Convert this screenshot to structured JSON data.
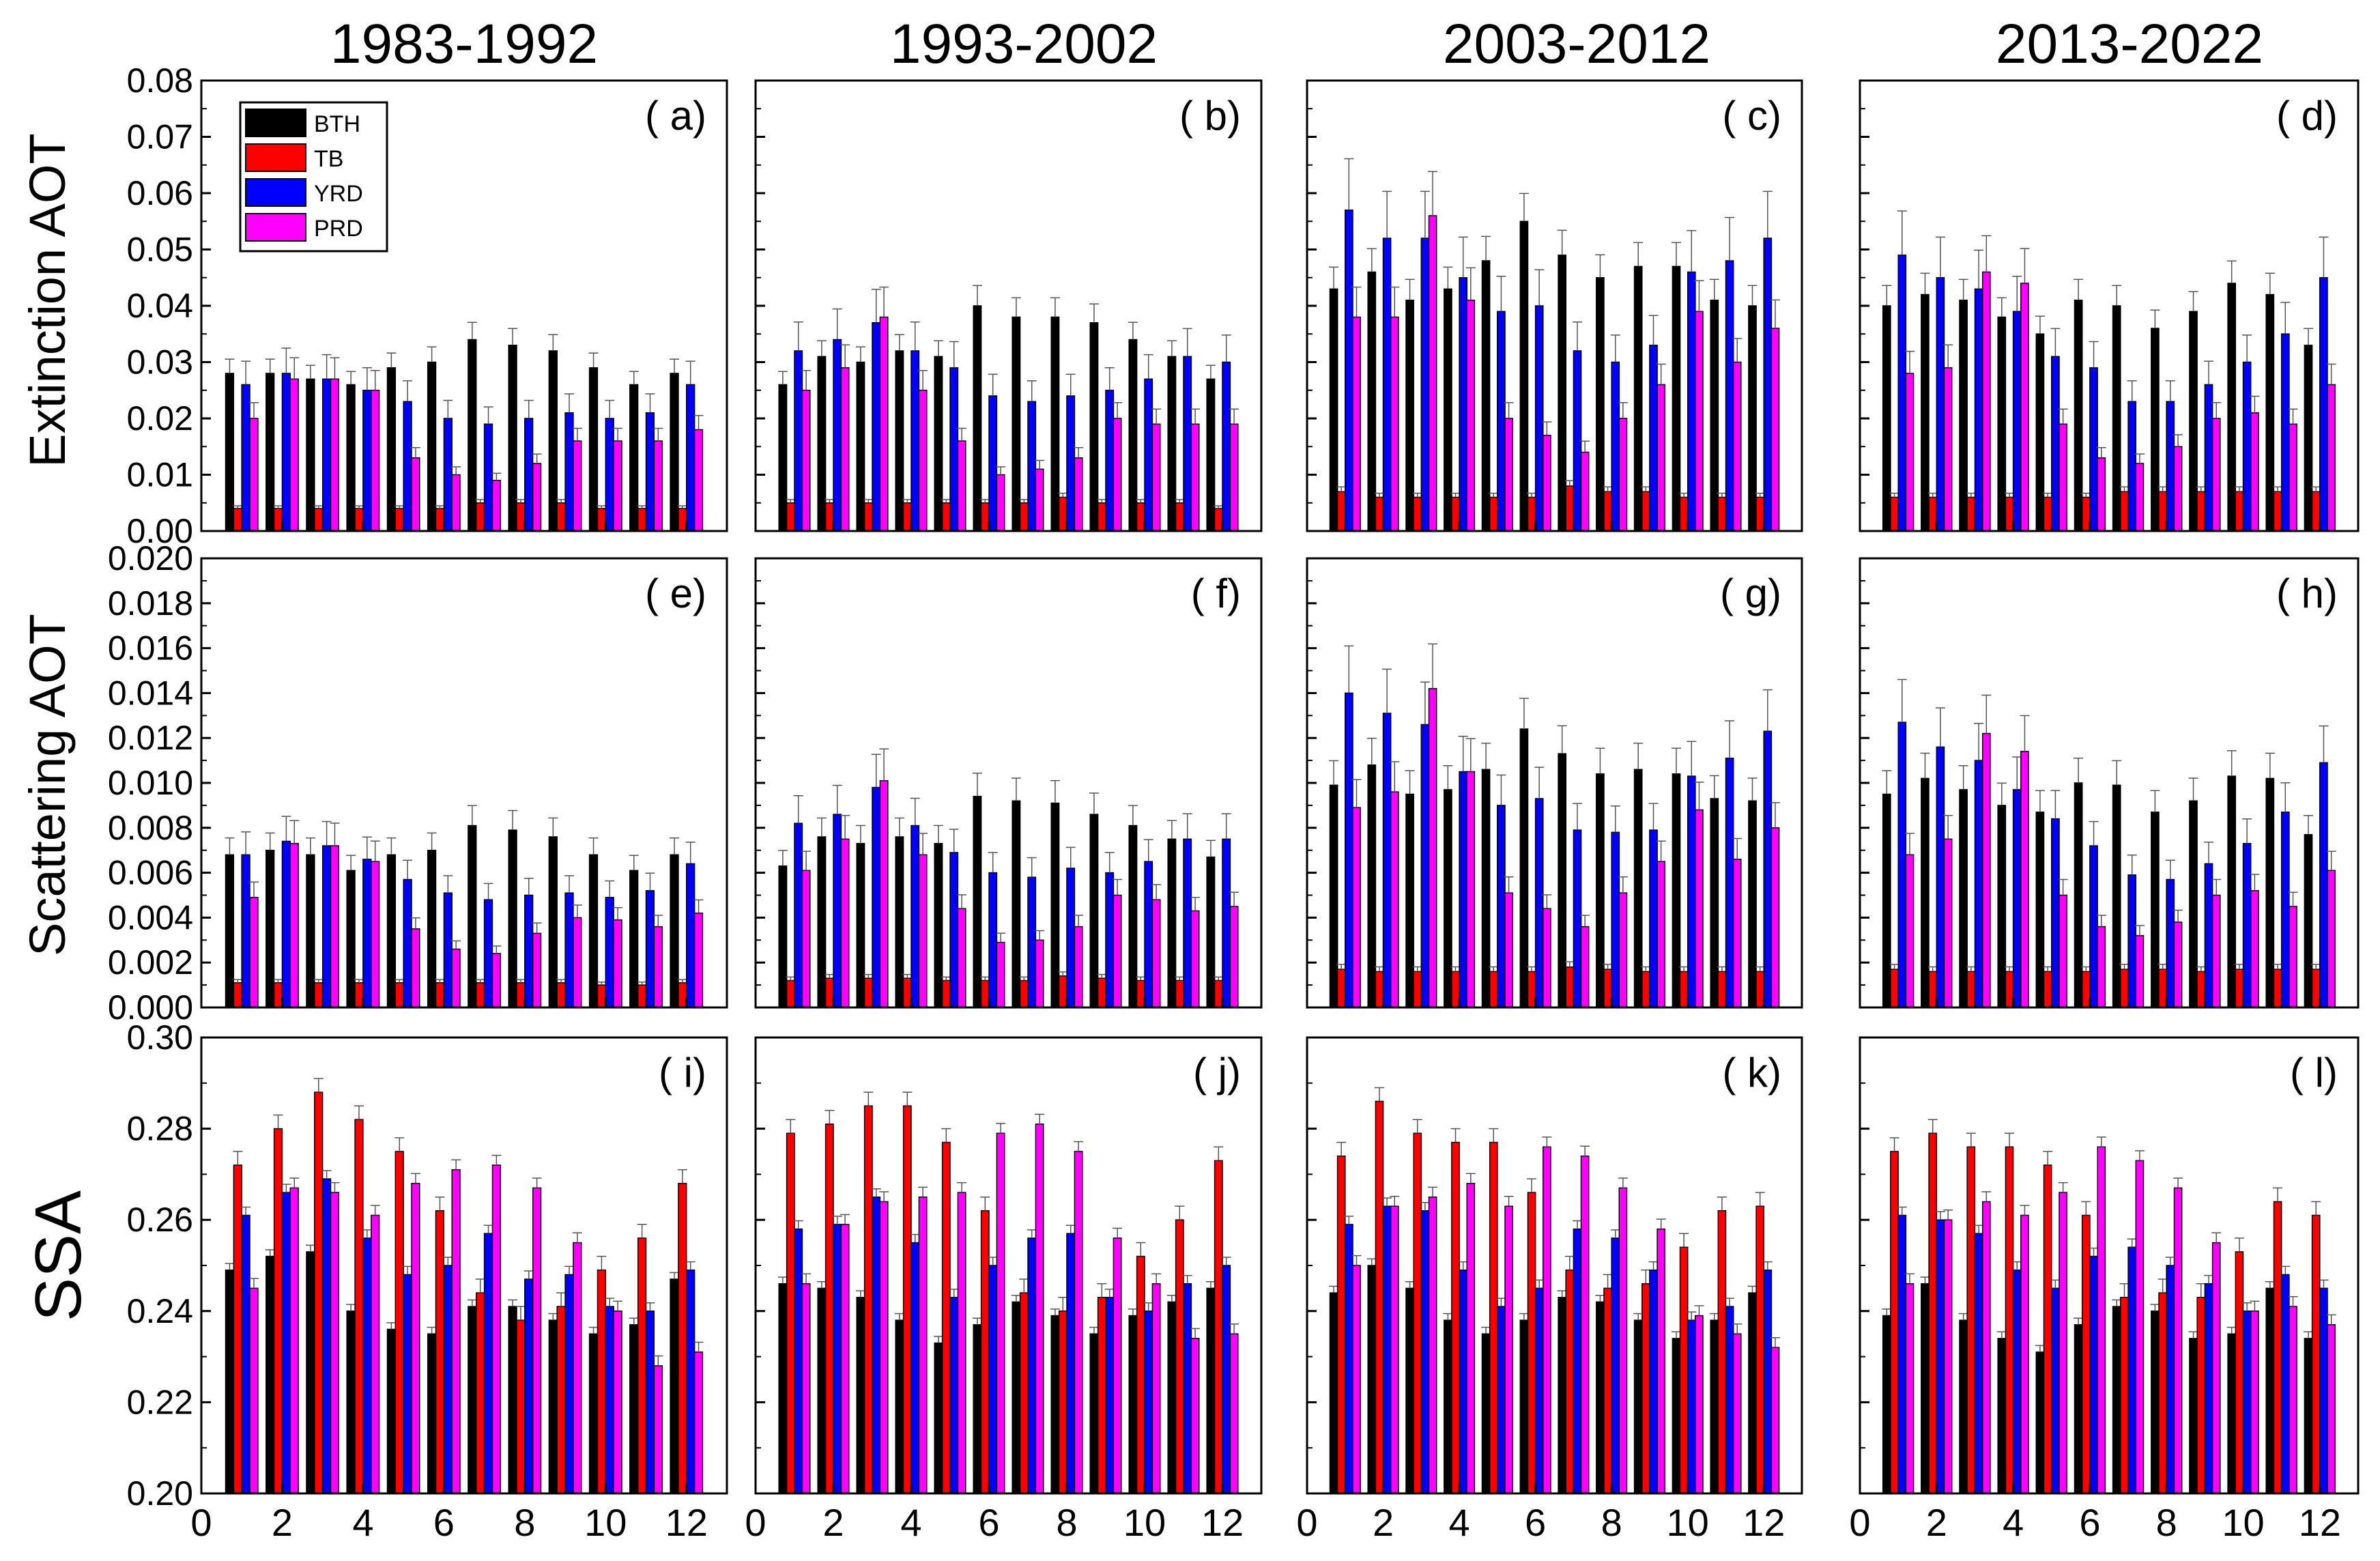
{
  "legend": [
    {
      "name": "BTH",
      "color": "#000000"
    },
    {
      "name": "TB",
      "color": "#ff0000"
    },
    {
      "name": "YRD",
      "color": "#0000ff"
    },
    {
      "name": "PRD",
      "color": "#ff00ff"
    }
  ],
  "periods": [
    "1983-1992",
    "1993-2002",
    "2003-2012",
    "2013-2022"
  ],
  "rows": [
    {
      "label": "Extinction AOT",
      "ylim": [
        0,
        0.08
      ],
      "ticks": [
        "0.00",
        "0.01",
        "0.02",
        "0.03",
        "0.04",
        "0.05",
        "0.06",
        "0.07",
        "0.08"
      ]
    },
    {
      "label": "Scattering AOT",
      "ylim": [
        0,
        0.02
      ],
      "ticks": [
        "0.000",
        "0.002",
        "0.004",
        "0.006",
        "0.008",
        "0.010",
        "0.012",
        "0.014",
        "0.016",
        "0.018",
        "0.020"
      ]
    },
    {
      "label": "SSA",
      "ylim": [
        0.2,
        0.3
      ],
      "ticks": [
        "0.20",
        "0.22",
        "0.24",
        "0.26",
        "0.28",
        "0.30"
      ]
    }
  ],
  "x_ticks": [
    "0",
    "2",
    "4",
    "6",
    "8",
    "10",
    "12"
  ],
  "chart_data": {
    "type": "bar",
    "categories": [
      1,
      2,
      3,
      4,
      5,
      6,
      7,
      8,
      9,
      10,
      11,
      12
    ],
    "series_names": [
      "BTH",
      "TB",
      "YRD",
      "PRD"
    ],
    "xlim": [
      0,
      13
    ],
    "panels": [
      {
        "label": "( a)",
        "row": 0,
        "col": 0,
        "series": [
          [
            0.028,
            0.028,
            0.027,
            0.026,
            0.029,
            0.03,
            0.034,
            0.033,
            0.032,
            0.029,
            0.026,
            0.028
          ],
          [
            0.004,
            0.004,
            0.004,
            0.004,
            0.004,
            0.004,
            0.005,
            0.005,
            0.005,
            0.004,
            0.004,
            0.004
          ],
          [
            0.026,
            0.028,
            0.027,
            0.025,
            0.023,
            0.02,
            0.019,
            0.02,
            0.021,
            0.02,
            0.021,
            0.026
          ],
          [
            0.02,
            0.027,
            0.027,
            0.025,
            0.013,
            0.01,
            0.009,
            0.012,
            0.016,
            0.016,
            0.016,
            0.018
          ]
        ]
      },
      {
        "label": "( b)",
        "row": 0,
        "col": 1,
        "series": [
          [
            0.026,
            0.031,
            0.03,
            0.032,
            0.031,
            0.04,
            0.038,
            0.038,
            0.037,
            0.034,
            0.031,
            0.027
          ],
          [
            0.005,
            0.005,
            0.005,
            0.005,
            0.005,
            0.005,
            0.005,
            0.006,
            0.005,
            0.005,
            0.005,
            0.004
          ],
          [
            0.032,
            0.034,
            0.037,
            0.032,
            0.029,
            0.024,
            0.023,
            0.024,
            0.025,
            0.027,
            0.031,
            0.03
          ],
          [
            0.025,
            0.029,
            0.038,
            0.025,
            0.016,
            0.01,
            0.011,
            0.013,
            0.02,
            0.019,
            0.019,
            0.019
          ]
        ]
      },
      {
        "label": "( c)",
        "row": 0,
        "col": 2,
        "series": [
          [
            0.043,
            0.046,
            0.041,
            0.043,
            0.048,
            0.055,
            0.049,
            0.045,
            0.047,
            0.047,
            0.041,
            0.04
          ],
          [
            0.007,
            0.006,
            0.006,
            0.006,
            0.006,
            0.006,
            0.008,
            0.007,
            0.007,
            0.006,
            0.006,
            0.006
          ],
          [
            0.057,
            0.052,
            0.052,
            0.045,
            0.039,
            0.04,
            0.032,
            0.03,
            0.033,
            0.046,
            0.048,
            0.052
          ],
          [
            0.038,
            0.038,
            0.056,
            0.041,
            0.02,
            0.017,
            0.014,
            0.02,
            0.026,
            0.039,
            0.03,
            0.036
          ]
        ]
      },
      {
        "label": "( d)",
        "row": 0,
        "col": 3,
        "series": [
          [
            0.04,
            0.042,
            0.041,
            0.038,
            0.035,
            0.041,
            0.04,
            0.036,
            0.039,
            0.044,
            0.042,
            0.033
          ],
          [
            0.006,
            0.006,
            0.006,
            0.006,
            0.006,
            0.006,
            0.007,
            0.007,
            0.007,
            0.007,
            0.007,
            0.007
          ],
          [
            0.049,
            0.045,
            0.043,
            0.039,
            0.031,
            0.029,
            0.023,
            0.023,
            0.026,
            0.03,
            0.035,
            0.045
          ],
          [
            0.028,
            0.029,
            0.046,
            0.044,
            0.019,
            0.013,
            0.012,
            0.015,
            0.02,
            0.021,
            0.019,
            0.026
          ]
        ]
      },
      {
        "label": "( e)",
        "row": 1,
        "col": 0,
        "series": [
          [
            0.0068,
            0.007,
            0.0068,
            0.0061,
            0.0068,
            0.007,
            0.0081,
            0.0079,
            0.0076,
            0.0068,
            0.0061,
            0.0068
          ],
          [
            0.0011,
            0.0011,
            0.0011,
            0.0011,
            0.0011,
            0.0011,
            0.0011,
            0.0011,
            0.0011,
            0.001,
            0.001,
            0.0011
          ],
          [
            0.0068,
            0.0074,
            0.0072,
            0.0066,
            0.0057,
            0.0051,
            0.0048,
            0.005,
            0.0051,
            0.0049,
            0.0052,
            0.0064
          ],
          [
            0.0049,
            0.0073,
            0.0072,
            0.0065,
            0.0035,
            0.0026,
            0.0024,
            0.0033,
            0.004,
            0.0039,
            0.0036,
            0.0042
          ]
        ]
      },
      {
        "label": "( f)",
        "row": 1,
        "col": 1,
        "series": [
          [
            0.0063,
            0.0076,
            0.0073,
            0.0076,
            0.0073,
            0.0094,
            0.0092,
            0.0091,
            0.0086,
            0.0081,
            0.0075,
            0.0067
          ],
          [
            0.0012,
            0.0013,
            0.0013,
            0.0013,
            0.0012,
            0.0012,
            0.0012,
            0.0014,
            0.0013,
            0.0012,
            0.0012,
            0.0012
          ],
          [
            0.0082,
            0.0086,
            0.0098,
            0.0081,
            0.0069,
            0.006,
            0.0058,
            0.0062,
            0.006,
            0.0065,
            0.0075,
            0.0075
          ],
          [
            0.0061,
            0.0075,
            0.0101,
            0.0068,
            0.0044,
            0.0029,
            0.003,
            0.0036,
            0.005,
            0.0048,
            0.0043,
            0.0045
          ]
        ]
      },
      {
        "label": "( g)",
        "row": 1,
        "col": 2,
        "series": [
          [
            0.0099,
            0.0108,
            0.0095,
            0.0097,
            0.0106,
            0.0124,
            0.0113,
            0.0104,
            0.0106,
            0.0104,
            0.0093,
            0.0092
          ],
          [
            0.0017,
            0.0016,
            0.0016,
            0.0016,
            0.0016,
            0.0016,
            0.0018,
            0.0017,
            0.0016,
            0.0016,
            0.0016,
            0.0016
          ],
          [
            0.014,
            0.0131,
            0.0126,
            0.0105,
            0.009,
            0.0093,
            0.0079,
            0.0078,
            0.0079,
            0.0103,
            0.0111,
            0.0123
          ],
          [
            0.0089,
            0.0096,
            0.0142,
            0.0105,
            0.0051,
            0.0044,
            0.0036,
            0.0051,
            0.0065,
            0.0088,
            0.0066,
            0.008
          ]
        ]
      },
      {
        "label": "( h)",
        "row": 1,
        "col": 3,
        "series": [
          [
            0.0095,
            0.0102,
            0.0097,
            0.009,
            0.0087,
            0.01,
            0.0099,
            0.0087,
            0.0092,
            0.0103,
            0.0102,
            0.0077
          ],
          [
            0.0017,
            0.0016,
            0.0016,
            0.0016,
            0.0016,
            0.0016,
            0.0017,
            0.0017,
            0.0016,
            0.0017,
            0.0017,
            0.0017
          ],
          [
            0.0127,
            0.0116,
            0.011,
            0.0097,
            0.0084,
            0.0072,
            0.0059,
            0.0057,
            0.0064,
            0.0073,
            0.0087,
            0.0109
          ],
          [
            0.0068,
            0.0075,
            0.0122,
            0.0114,
            0.005,
            0.0036,
            0.0032,
            0.0038,
            0.005,
            0.0052,
            0.0045,
            0.0061
          ]
        ]
      },
      {
        "label": "( i)",
        "row": 2,
        "col": 0,
        "series": [
          [
            0.249,
            0.252,
            0.253,
            0.24,
            0.236,
            0.235,
            0.241,
            0.241,
            0.238,
            0.235,
            0.237,
            0.247
          ],
          [
            0.272,
            0.28,
            0.288,
            0.282,
            0.275,
            0.262,
            0.244,
            0.238,
            0.241,
            0.249,
            0.256,
            0.268
          ],
          [
            0.261,
            0.266,
            0.269,
            0.256,
            0.248,
            0.25,
            0.257,
            0.247,
            0.248,
            0.241,
            0.24,
            0.249
          ],
          [
            0.245,
            0.267,
            0.266,
            0.261,
            0.268,
            0.271,
            0.272,
            0.267,
            0.255,
            0.24,
            0.228,
            0.231
          ]
        ]
      },
      {
        "label": "( j)",
        "row": 2,
        "col": 1,
        "series": [
          [
            0.246,
            0.245,
            0.243,
            0.238,
            0.233,
            0.237,
            0.242,
            0.239,
            0.235,
            0.239,
            0.242,
            0.245
          ],
          [
            0.279,
            0.281,
            0.285,
            0.285,
            0.277,
            0.262,
            0.244,
            0.24,
            0.243,
            0.252,
            0.26,
            0.273
          ],
          [
            0.258,
            0.259,
            0.265,
            0.255,
            0.243,
            0.25,
            0.256,
            0.257,
            0.243,
            0.24,
            0.246,
            0.25
          ],
          [
            0.246,
            0.259,
            0.264,
            0.265,
            0.266,
            0.279,
            0.281,
            0.275,
            0.256,
            0.246,
            0.234,
            0.235
          ]
        ]
      },
      {
        "label": "( k)",
        "row": 2,
        "col": 2,
        "series": [
          [
            0.244,
            0.25,
            0.245,
            0.238,
            0.235,
            0.238,
            0.243,
            0.242,
            0.238,
            0.234,
            0.238,
            0.244
          ],
          [
            0.274,
            0.286,
            0.279,
            0.277,
            0.277,
            0.266,
            0.249,
            0.245,
            0.246,
            0.254,
            0.262,
            0.263
          ],
          [
            0.259,
            0.263,
            0.262,
            0.249,
            0.241,
            0.245,
            0.258,
            0.256,
            0.249,
            0.238,
            0.241,
            0.249
          ],
          [
            0.25,
            0.263,
            0.265,
            0.268,
            0.263,
            0.276,
            0.274,
            0.267,
            0.258,
            0.239,
            0.235,
            0.232
          ]
        ]
      },
      {
        "label": "( l)",
        "row": 2,
        "col": 3,
        "series": [
          [
            0.239,
            0.246,
            0.238,
            0.234,
            0.231,
            0.237,
            0.241,
            0.24,
            0.234,
            0.235,
            0.245,
            0.234
          ],
          [
            0.275,
            0.279,
            0.276,
            0.276,
            0.272,
            0.261,
            0.243,
            0.244,
            0.243,
            0.253,
            0.264,
            0.261
          ],
          [
            0.261,
            0.26,
            0.257,
            0.249,
            0.245,
            0.252,
            0.254,
            0.25,
            0.246,
            0.24,
            0.248,
            0.245
          ],
          [
            0.246,
            0.26,
            0.264,
            0.261,
            0.266,
            0.276,
            0.273,
            0.267,
            0.255,
            0.24,
            0.241,
            0.237
          ]
        ]
      }
    ]
  }
}
